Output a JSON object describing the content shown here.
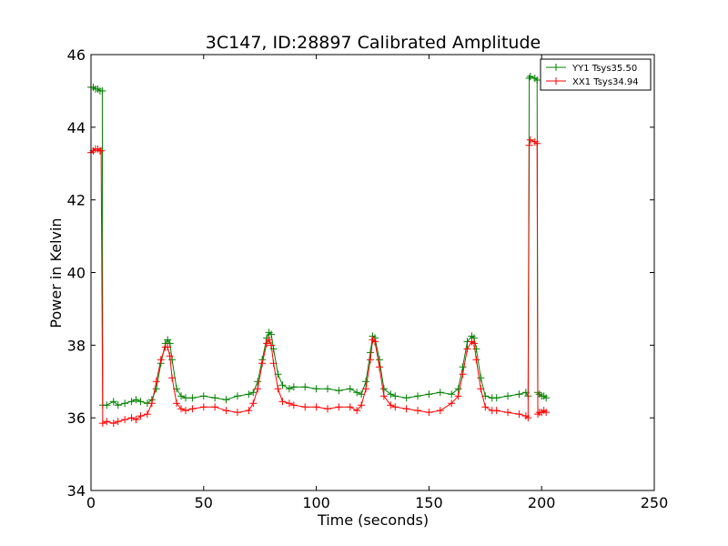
{
  "chart_data": {
    "type": "line",
    "title": "3C147, ID:28897 Calibrated Amplitude",
    "xlabel": "Time (seconds)",
    "ylabel": "Power in Kelvin",
    "xlim": [
      0,
      250
    ],
    "ylim": [
      34,
      46
    ],
    "xticks": [
      0,
      50,
      100,
      150,
      200,
      250
    ],
    "yticks": [
      34,
      36,
      38,
      40,
      42,
      44,
      46
    ],
    "xtick_labels": [
      "0",
      "50",
      "100",
      "150",
      "200",
      "250"
    ],
    "ytick_labels": [
      "34",
      "36",
      "38",
      "40",
      "42",
      "44",
      "46"
    ],
    "grid": false,
    "legend": {
      "location": "top-right"
    },
    "series": [
      {
        "name": "YY1 Tsys35.50",
        "color": "#008000",
        "marker": "plus",
        "x": [
          0,
          1,
          2,
          3,
          4,
          5,
          5.2,
          7,
          10,
          12,
          15,
          18,
          20,
          22,
          25,
          27,
          29,
          31,
          33,
          34,
          35,
          36,
          38,
          40,
          42,
          45,
          50,
          55,
          60,
          65,
          70,
          72,
          74,
          76,
          78,
          79,
          80,
          81,
          83,
          85,
          88,
          90,
          95,
          100,
          105,
          110,
          115,
          118,
          120,
          122,
          124,
          125,
          126,
          128,
          130,
          133,
          135,
          140,
          145,
          150,
          155,
          160,
          163,
          165,
          167,
          169,
          170,
          171,
          173,
          175,
          178,
          180,
          185,
          190,
          193,
          194,
          194.5,
          195,
          197,
          198,
          198.3,
          199,
          200,
          201,
          202
        ],
        "y": [
          45.1,
          45.1,
          45.05,
          45.05,
          45.0,
          45.0,
          36.35,
          36.35,
          36.45,
          36.35,
          36.4,
          36.45,
          36.5,
          36.45,
          36.4,
          36.5,
          36.8,
          37.5,
          38.05,
          38.15,
          38.05,
          37.6,
          36.8,
          36.6,
          36.55,
          36.55,
          36.6,
          36.55,
          36.5,
          36.6,
          36.65,
          36.7,
          37.0,
          37.6,
          38.2,
          38.35,
          38.3,
          37.9,
          37.2,
          36.9,
          36.8,
          36.85,
          36.85,
          36.8,
          36.8,
          36.75,
          36.8,
          36.7,
          36.65,
          37.0,
          37.8,
          38.25,
          38.2,
          37.6,
          36.8,
          36.65,
          36.6,
          36.55,
          36.6,
          36.65,
          36.7,
          36.65,
          36.8,
          37.4,
          38.1,
          38.25,
          38.2,
          37.9,
          37.1,
          36.6,
          36.55,
          36.55,
          36.6,
          36.65,
          36.7,
          36.6,
          45.35,
          45.4,
          45.35,
          45.3,
          36.7,
          36.65,
          36.6,
          36.6,
          36.55
        ]
      },
      {
        "name": "XX1 Tsys34.94",
        "color": "#ff0000",
        "marker": "plus",
        "x": [
          0,
          1,
          2,
          3,
          4,
          4.5,
          5.2,
          7,
          10,
          12,
          15,
          18,
          20,
          22,
          25,
          27,
          29,
          31,
          33,
          34,
          35,
          36,
          38,
          40,
          42,
          45,
          50,
          55,
          60,
          65,
          70,
          72,
          74,
          76,
          78,
          79,
          80,
          81,
          83,
          85,
          88,
          90,
          95,
          100,
          105,
          110,
          115,
          118,
          120,
          122,
          124,
          125,
          126,
          128,
          130,
          133,
          135,
          140,
          145,
          150,
          155,
          160,
          163,
          165,
          167,
          169,
          170,
          171,
          173,
          175,
          178,
          180,
          185,
          190,
          193,
          194,
          194.5,
          195,
          197,
          198,
          198.3,
          199,
          200,
          201,
          202
        ],
        "y": [
          43.3,
          43.35,
          43.4,
          43.4,
          43.35,
          43.35,
          35.85,
          35.9,
          35.85,
          35.9,
          35.95,
          36.0,
          35.95,
          36.05,
          36.1,
          36.4,
          37.0,
          37.6,
          37.95,
          37.95,
          37.7,
          37.1,
          36.4,
          36.25,
          36.2,
          36.25,
          36.3,
          36.3,
          36.2,
          36.15,
          36.2,
          36.4,
          36.8,
          37.5,
          38.05,
          38.15,
          38.0,
          37.5,
          36.8,
          36.45,
          36.4,
          36.35,
          36.3,
          36.3,
          36.25,
          36.3,
          36.3,
          36.2,
          36.35,
          36.8,
          37.6,
          38.15,
          38.1,
          37.4,
          36.6,
          36.35,
          36.3,
          36.25,
          36.2,
          36.15,
          36.2,
          36.4,
          36.6,
          37.2,
          37.9,
          38.1,
          38.05,
          37.6,
          36.8,
          36.3,
          36.2,
          36.2,
          36.15,
          36.1,
          36.05,
          36.0,
          43.5,
          43.65,
          43.6,
          43.55,
          36.1,
          36.15,
          36.15,
          36.2,
          36.15
        ]
      }
    ]
  }
}
